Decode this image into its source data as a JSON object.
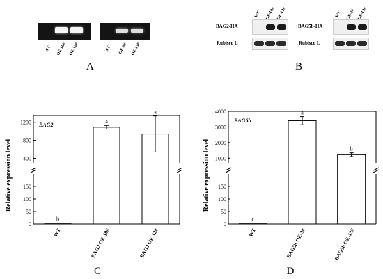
{
  "panelA": {
    "letter": "A",
    "gels": [
      {
        "lanes": [
          "WT",
          "OE-10#",
          "OE-12#"
        ]
      },
      {
        "lanes": [
          "WT",
          "OE-3#",
          "OE-13#"
        ]
      }
    ]
  },
  "panelB": {
    "letter": "B",
    "blots": [
      {
        "target": "BAG2-HA",
        "loading": "Rubisco L",
        "lanes": [
          "WT",
          "OE-10#",
          "OE-12#"
        ]
      },
      {
        "target": "BAG5b-HA",
        "loading": "Rubisco L",
        "lanes": [
          "WT",
          "OE-3#",
          "OE-13#"
        ]
      }
    ]
  },
  "panelC": {
    "letter": "C"
  },
  "panelD": {
    "letter": "D"
  },
  "chart_data": [
    {
      "type": "bar",
      "gene": "BAG2",
      "ylabel": "Relative expression level",
      "categories": [
        "WT",
        "BAG2 OE-10#",
        "BAG2 OE-12#"
      ],
      "values": [
        1,
        1090,
        940
      ],
      "errors": [
        0.5,
        40,
        400
      ],
      "significance": [
        "b",
        "a",
        "a"
      ],
      "axis_break": true,
      "lower_ylim": [
        0,
        200
      ],
      "lower_ticks": [
        "0",
        "50",
        "100",
        "150"
      ],
      "upper_ylim": [
        300,
        1350
      ],
      "upper_ticks": [
        "400",
        "800",
        "1200"
      ]
    },
    {
      "type": "bar",
      "gene": "BAG5b",
      "ylabel": "Relative expression level",
      "categories": [
        "WT",
        "BAG5b OE-3#",
        "BAG5b OE-13#"
      ],
      "values": [
        1,
        3400,
        1220
      ],
      "errors": [
        0.5,
        260,
        120
      ],
      "significance": [
        "c",
        "a",
        "b"
      ],
      "axis_break": true,
      "lower_ylim": [
        0,
        200
      ],
      "lower_ticks": [
        "0",
        "50",
        "100",
        "150"
      ],
      "upper_ylim": [
        700,
        4000
      ],
      "upper_ticks": [
        "1000",
        "2000",
        "3000",
        "4000"
      ]
    }
  ]
}
